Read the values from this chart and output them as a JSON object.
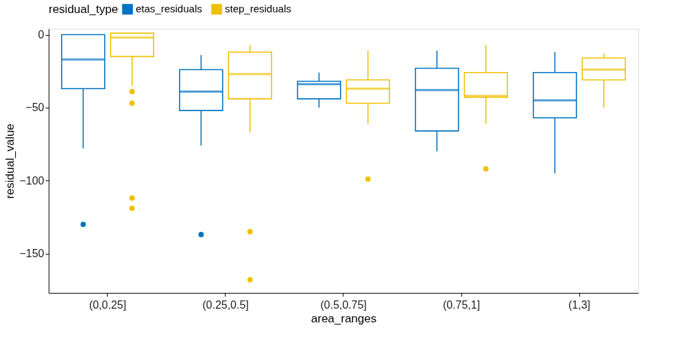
{
  "chart_data": {
    "type": "box",
    "xlabel": "area_ranges",
    "ylabel": "residual_value",
    "legend_title": "residual_type",
    "legend": "top",
    "grid": false,
    "categories": [
      "(0,0.25]",
      "(0.25,0.5]",
      "(0.5,0.75]",
      "(0.75,1]",
      "(1,3]"
    ],
    "ylim": [
      -177,
      4
    ],
    "yticks": [
      0,
      -50,
      -100,
      -150
    ],
    "series": [
      {
        "name": "etas_residuals",
        "color": "#0073c2",
        "boxes": [
          {
            "low": -78,
            "q1": -37,
            "median": -17,
            "q3": 0,
            "high": 0,
            "outliers": [
              -130
            ]
          },
          {
            "low": -76,
            "q1": -52,
            "median": -39,
            "q3": -24,
            "high": -14,
            "outliers": [
              -137
            ]
          },
          {
            "low": -50,
            "q1": -44,
            "median": -34,
            "q3": -32,
            "high": -26
          },
          {
            "low": -80,
            "q1": -66,
            "median": -38,
            "q3": -23,
            "high": -11
          },
          {
            "low": -95,
            "q1": -57,
            "median": -45,
            "q3": -26,
            "high": -12
          }
        ]
      },
      {
        "name": "step_residuals",
        "color": "#efc000",
        "boxes": [
          {
            "low": -35,
            "q1": -15,
            "median": -2,
            "q3": 1,
            "high": 1,
            "outliers": [
              -39,
              -47,
              -112,
              -119
            ]
          },
          {
            "low": -67,
            "q1": -44,
            "median": -27,
            "q3": -12,
            "high": -7,
            "outliers": [
              -135,
              -168
            ]
          },
          {
            "low": -61,
            "q1": -47,
            "median": -37,
            "q3": -31,
            "high": -11,
            "outliers": [
              -99
            ]
          },
          {
            "low": -61,
            "q1": -43,
            "median": -42,
            "q3": -26,
            "high": -7,
            "outliers": [
              -92
            ]
          },
          {
            "low": -50,
            "q1": -31,
            "median": -24,
            "q3": -16,
            "high": -13
          }
        ]
      }
    ]
  }
}
